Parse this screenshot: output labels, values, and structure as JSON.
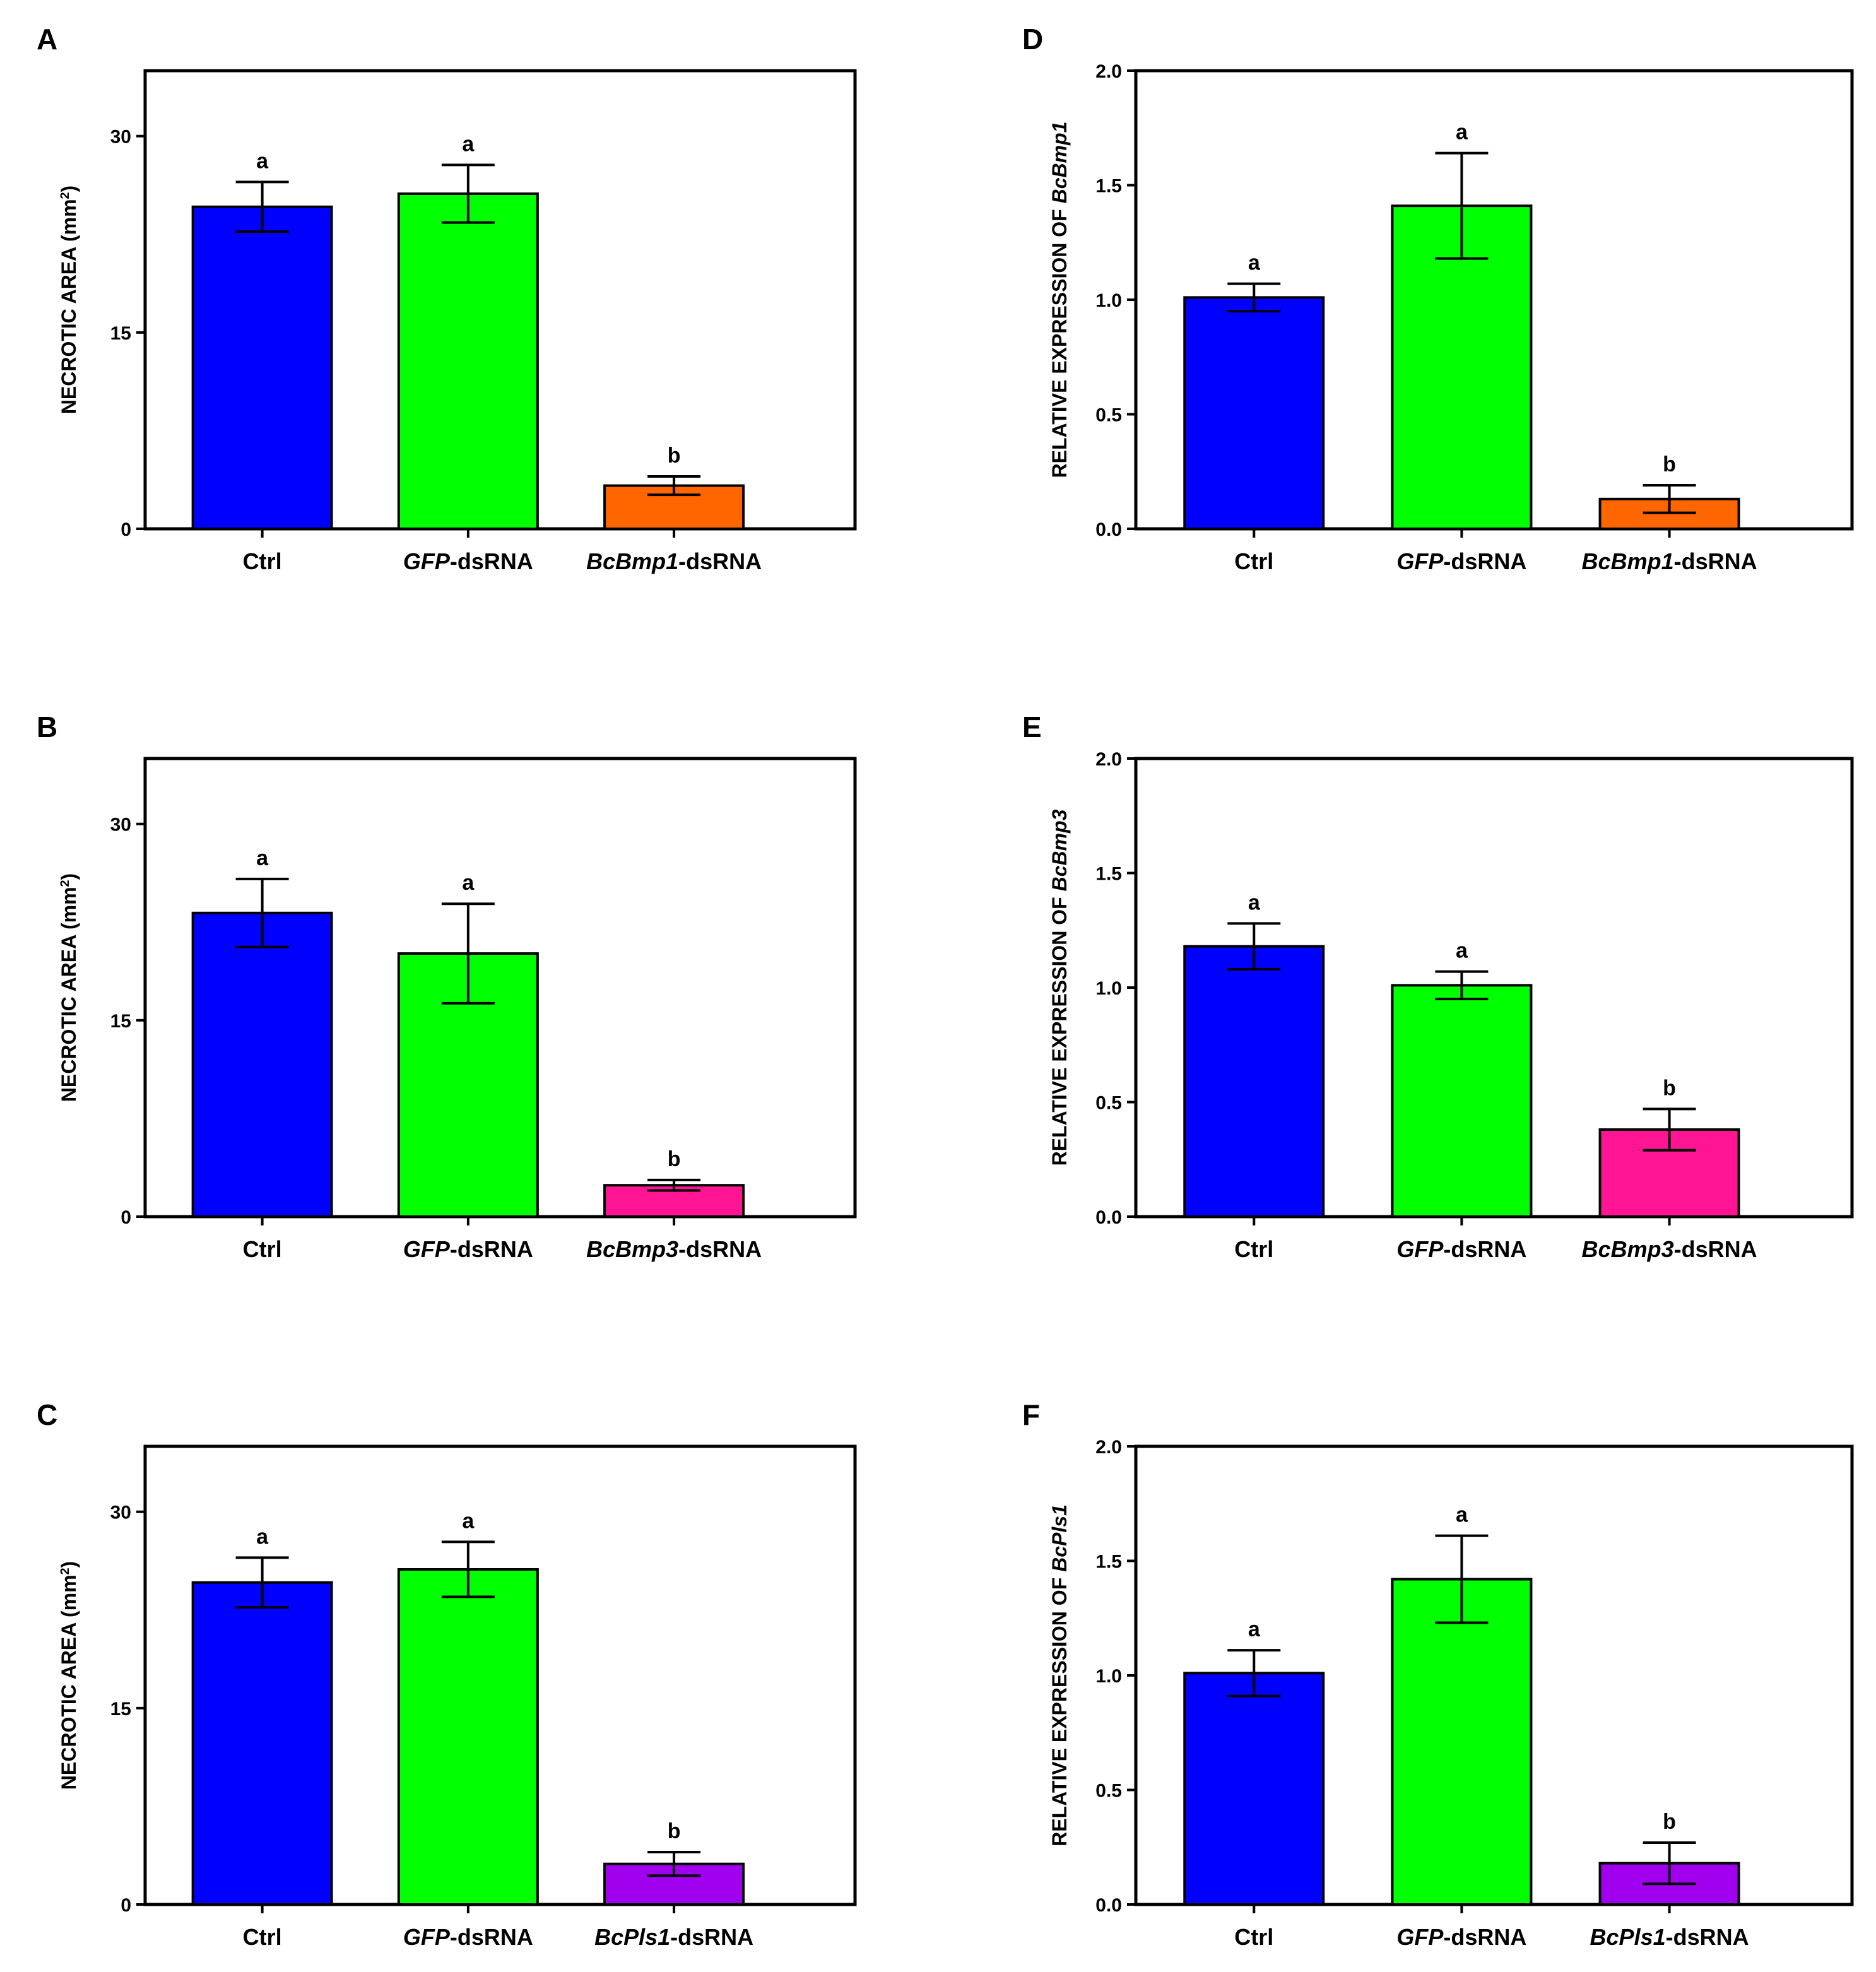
{
  "chart_data": [
    {
      "panel": "A",
      "type": "bar",
      "ylabel_parts": [
        {
          "text": "NECROTIC AREA (mm"
        },
        {
          "text": "2",
          "sup": true
        },
        {
          "text": ")"
        }
      ],
      "ylim": [
        0,
        35
      ],
      "yticks": [
        "0",
        "15",
        "30"
      ],
      "ytick_values": [
        0,
        15,
        30
      ],
      "categories": [
        [
          {
            "text": "Ctrl"
          }
        ],
        [
          {
            "text": "GFP",
            "italic": true
          },
          {
            "text": "-dsRNA"
          }
        ],
        [
          {
            "text": "BcBmp1",
            "italic": true
          },
          {
            "text": "-dsRNA"
          }
        ]
      ],
      "values": [
        24.6,
        25.6,
        3.3
      ],
      "errors": [
        1.9,
        2.2,
        0.7
      ],
      "sig": [
        "a",
        "a",
        "b"
      ],
      "colors": [
        "#0000FF",
        "#00FF00",
        "#FF6600"
      ]
    },
    {
      "panel": "B",
      "type": "bar",
      "ylabel_parts": [
        {
          "text": "NECROTIC AREA (mm"
        },
        {
          "text": "2",
          "sup": true
        },
        {
          "text": ")"
        }
      ],
      "ylim": [
        0,
        35
      ],
      "yticks": [
        "0",
        "15",
        "30"
      ],
      "ytick_values": [
        0,
        15,
        30
      ],
      "categories": [
        [
          {
            "text": "Ctrl"
          }
        ],
        [
          {
            "text": "GFP",
            "italic": true
          },
          {
            "text": "-dsRNA"
          }
        ],
        [
          {
            "text": "BcBmp3",
            "italic": true
          },
          {
            "text": "-dsRNA"
          }
        ]
      ],
      "values": [
        23.2,
        20.1,
        2.4
      ],
      "errors": [
        2.6,
        3.8,
        0.4
      ],
      "sig": [
        "a",
        "a",
        "b"
      ],
      "colors": [
        "#0000FF",
        "#00FF00",
        "#FF1493"
      ]
    },
    {
      "panel": "C",
      "type": "bar",
      "ylabel_parts": [
        {
          "text": "NECROTIC AREA (mm"
        },
        {
          "text": "2",
          "sup": true
        },
        {
          "text": ")"
        }
      ],
      "ylim": [
        0,
        35
      ],
      "yticks": [
        "0",
        "15",
        "30"
      ],
      "ytick_values": [
        0,
        15,
        30
      ],
      "categories": [
        [
          {
            "text": "Ctrl"
          }
        ],
        [
          {
            "text": "GFP",
            "italic": true
          },
          {
            "text": "-dsRNA"
          }
        ],
        [
          {
            "text": "BcPls1",
            "italic": true
          },
          {
            "text": "-dsRNA"
          }
        ]
      ],
      "values": [
        24.6,
        25.6,
        3.1
      ],
      "errors": [
        1.9,
        2.1,
        0.9
      ],
      "sig": [
        "a",
        "a",
        "b"
      ],
      "colors": [
        "#0000FF",
        "#00FF00",
        "#A000EE"
      ]
    },
    {
      "panel": "D",
      "type": "bar",
      "ylabel_parts": [
        {
          "text": "RELATIVE EXPRESSION OF "
        },
        {
          "text": "BcBmp1",
          "italic": true
        }
      ],
      "ylim": [
        0,
        2.0
      ],
      "yticks": [
        "0.0",
        "0.5",
        "1.0",
        "1.5",
        "2.0"
      ],
      "ytick_values": [
        0,
        0.5,
        1.0,
        1.5,
        2.0
      ],
      "categories": [
        [
          {
            "text": "Ctrl"
          }
        ],
        [
          {
            "text": "GFP",
            "italic": true
          },
          {
            "text": "-dsRNA"
          }
        ],
        [
          {
            "text": "BcBmp1",
            "italic": true
          },
          {
            "text": "-dsRNA"
          }
        ]
      ],
      "values": [
        1.01,
        1.41,
        0.13
      ],
      "errors": [
        0.06,
        0.23,
        0.06
      ],
      "sig": [
        "a",
        "a",
        "b"
      ],
      "colors": [
        "#0000FF",
        "#00FF00",
        "#FF6600"
      ]
    },
    {
      "panel": "E",
      "type": "bar",
      "ylabel_parts": [
        {
          "text": "RELATIVE EXPRESSION OF "
        },
        {
          "text": "BcBmp3",
          "italic": true
        }
      ],
      "ylim": [
        0,
        2.0
      ],
      "yticks": [
        "0.0",
        "0.5",
        "1.0",
        "1.5",
        "2.0"
      ],
      "ytick_values": [
        0,
        0.5,
        1.0,
        1.5,
        2.0
      ],
      "categories": [
        [
          {
            "text": "Ctrl"
          }
        ],
        [
          {
            "text": "GFP",
            "italic": true
          },
          {
            "text": "-dsRNA"
          }
        ],
        [
          {
            "text": "BcBmp3",
            "italic": true
          },
          {
            "text": "-dsRNA"
          }
        ]
      ],
      "values": [
        1.18,
        1.01,
        0.38
      ],
      "errors": [
        0.1,
        0.06,
        0.09
      ],
      "sig": [
        "a",
        "a",
        "b"
      ],
      "colors": [
        "#0000FF",
        "#00FF00",
        "#FF1493"
      ]
    },
    {
      "panel": "F",
      "type": "bar",
      "ylabel_parts": [
        {
          "text": "RELATIVE EXPRESSION OF "
        },
        {
          "text": "BcPls1",
          "italic": true
        }
      ],
      "ylim": [
        0,
        2.0
      ],
      "yticks": [
        "0.0",
        "0.5",
        "1.0",
        "1.5",
        "2.0"
      ],
      "ytick_values": [
        0,
        0.5,
        1.0,
        1.5,
        2.0
      ],
      "categories": [
        [
          {
            "text": "Ctrl"
          }
        ],
        [
          {
            "text": "GFP",
            "italic": true
          },
          {
            "text": "-dsRNA"
          }
        ],
        [
          {
            "text": "BcPls1",
            "italic": true
          },
          {
            "text": "-dsRNA"
          }
        ]
      ],
      "values": [
        1.01,
        1.42,
        0.18
      ],
      "errors": [
        0.1,
        0.19,
        0.09
      ],
      "sig": [
        "a",
        "a",
        "b"
      ],
      "colors": [
        "#0000FF",
        "#00FF00",
        "#A000EE"
      ]
    }
  ]
}
